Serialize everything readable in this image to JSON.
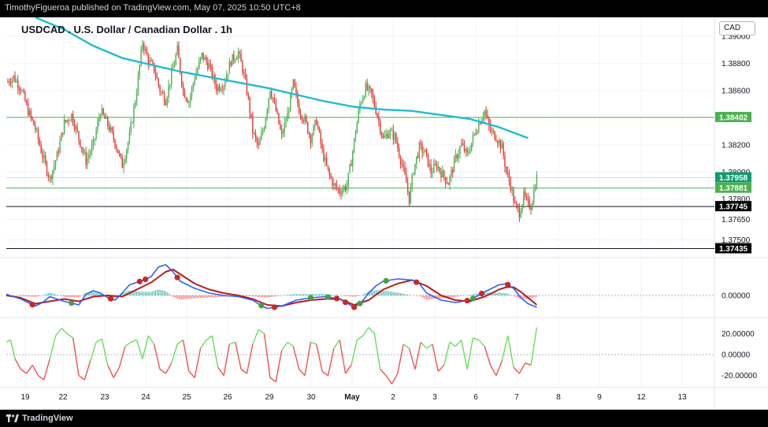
{
  "header": {
    "publisher": "TimothyFigueroa published on TradingView.com, May 07, 2025 10:50 UTC+8"
  },
  "footer": {
    "brand": "TradingView"
  },
  "title": "USDCAD . U.S. Dollar / Canadian Dollar . 1h",
  "currency_button": "CAD",
  "colors": {
    "up": "#4caf50",
    "down": "#e53935",
    "ma": "#1fbcd2",
    "macd_line": "#2962ff",
    "signal_line": "#b71c1c",
    "osc_up": "#66e05a",
    "osc_down": "#ef5350"
  },
  "chart_data": {
    "type": "candlestick",
    "price_axis": {
      "ticks": [
        "1.39000",
        "1.38800",
        "1.38600",
        "1.38200",
        "1.38000",
        "1.37800",
        "1.37650",
        "1.37500"
      ],
      "ylim": [
        1.3738,
        1.3914
      ]
    },
    "x_labels": [
      "19",
      "22",
      "23",
      "24",
      "25",
      "26",
      "29",
      "30",
      "May",
      "2",
      "3",
      "6",
      "7",
      "8",
      "9",
      "12",
      "13"
    ],
    "horizontal_levels": [
      {
        "label": "1.38402",
        "value": 1.38402,
        "style": "green-box"
      },
      {
        "label": "1.37958",
        "value": 1.37958,
        "style": "teal-box"
      },
      {
        "label": "1.37881",
        "value": 1.37881,
        "style": "green-box"
      },
      {
        "label": "1.37745",
        "value": 1.37745,
        "style": "black-box"
      },
      {
        "label": "1.37435",
        "value": 1.37435,
        "style": "black-box"
      }
    ],
    "price_path": [
      [
        0,
        1.3866
      ],
      [
        5,
        1.387
      ],
      [
        10,
        1.3862
      ],
      [
        15,
        1.3845
      ],
      [
        20,
        1.3832
      ],
      [
        25,
        1.3812
      ],
      [
        30,
        1.3795
      ],
      [
        35,
        1.3812
      ],
      [
        40,
        1.3836
      ],
      [
        45,
        1.3842
      ],
      [
        50,
        1.3825
      ],
      [
        55,
        1.3808
      ],
      [
        60,
        1.382
      ],
      [
        65,
        1.3845
      ],
      [
        70,
        1.3835
      ],
      [
        75,
        1.3822
      ],
      [
        80,
        1.3805
      ],
      [
        85,
        1.3826
      ],
      [
        90,
        1.386
      ],
      [
        94,
        1.3896
      ],
      [
        98,
        1.3882
      ],
      [
        102,
        1.3876
      ],
      [
        106,
        1.386
      ],
      [
        110,
        1.3853
      ],
      [
        114,
        1.3872
      ],
      [
        118,
        1.389
      ],
      [
        122,
        1.386
      ],
      [
        126,
        1.3852
      ],
      [
        130,
        1.387
      ],
      [
        135,
        1.3886
      ],
      [
        140,
        1.3878
      ],
      [
        145,
        1.3862
      ],
      [
        150,
        1.3865
      ],
      [
        155,
        1.3882
      ],
      [
        160,
        1.3888
      ],
      [
        163,
        1.3876
      ],
      [
        166,
        1.386
      ],
      [
        170,
        1.383
      ],
      [
        174,
        1.3818
      ],
      [
        178,
        1.3835
      ],
      [
        182,
        1.3862
      ],
      [
        186,
        1.3845
      ],
      [
        190,
        1.3826
      ],
      [
        194,
        1.3842
      ],
      [
        198,
        1.3865
      ],
      [
        202,
        1.3846
      ],
      [
        206,
        1.3838
      ],
      [
        210,
        1.3825
      ],
      [
        214,
        1.3838
      ],
      [
        218,
        1.3815
      ],
      [
        222,
        1.38
      ],
      [
        226,
        1.379
      ],
      [
        230,
        1.3786
      ],
      [
        235,
        1.379
      ],
      [
        238,
        1.3808
      ],
      [
        241,
        1.383
      ],
      [
        244,
        1.385
      ],
      [
        248,
        1.3862
      ],
      [
        252,
        1.3857
      ],
      [
        256,
        1.3842
      ],
      [
        260,
        1.3824
      ],
      [
        264,
        1.383
      ],
      [
        268,
        1.3826
      ],
      [
        272,
        1.381
      ],
      [
        276,
        1.3792
      ],
      [
        278,
        1.378
      ],
      [
        281,
        1.3802
      ],
      [
        285,
        1.3818
      ],
      [
        289,
        1.3814
      ],
      [
        293,
        1.38
      ],
      [
        297,
        1.3805
      ],
      [
        301,
        1.3798
      ],
      [
        305,
        1.3792
      ],
      [
        310,
        1.381
      ],
      [
        314,
        1.382
      ],
      [
        318,
        1.3812
      ],
      [
        322,
        1.3825
      ],
      [
        326,
        1.3836
      ],
      [
        330,
        1.3845
      ],
      [
        334,
        1.383
      ],
      [
        338,
        1.3826
      ],
      [
        342,
        1.3818
      ],
      [
        345,
        1.38
      ],
      [
        348,
        1.379
      ],
      [
        351,
        1.3775
      ],
      [
        354,
        1.377
      ],
      [
        357,
        1.3782
      ],
      [
        360,
        1.3776
      ],
      [
        362,
        1.3775
      ],
      [
        364,
        1.3786
      ],
      [
        366,
        1.3796
      ]
    ],
    "moving_average": [
      [
        20,
        1.3914
      ],
      [
        40,
        1.3905
      ],
      [
        60,
        1.3893
      ],
      [
        80,
        1.3884
      ],
      [
        100,
        1.3879
      ],
      [
        120,
        1.3874
      ],
      [
        140,
        1.387
      ],
      [
        160,
        1.3866
      ],
      [
        180,
        1.3862
      ],
      [
        200,
        1.3857
      ],
      [
        220,
        1.3852
      ],
      [
        240,
        1.3848
      ],
      [
        260,
        1.3846
      ],
      [
        280,
        1.3845
      ],
      [
        300,
        1.3842
      ],
      [
        320,
        1.3839
      ],
      [
        340,
        1.3833
      ],
      [
        350,
        1.3829
      ],
      [
        360,
        1.3825
      ]
    ],
    "oscillator_1": {
      "ticks": [
        "0.00000"
      ],
      "macd": [
        [
          0,
          0.1
        ],
        [
          10,
          -0.3
        ],
        [
          20,
          -0.9
        ],
        [
          25,
          -0.6
        ],
        [
          30,
          -0.1
        ],
        [
          35,
          -0.3
        ],
        [
          40,
          -0.5
        ],
        [
          50,
          -0.8
        ],
        [
          55,
          0.1
        ],
        [
          60,
          0.4
        ],
        [
          65,
          0.2
        ],
        [
          70,
          -0.2
        ],
        [
          75,
          -0.4
        ],
        [
          80,
          0.2
        ],
        [
          85,
          0.9
        ],
        [
          90,
          1.1
        ],
        [
          95,
          1.3
        ],
        [
          100,
          1.6
        ],
        [
          105,
          2.4
        ],
        [
          110,
          2.6
        ],
        [
          115,
          2.0
        ],
        [
          120,
          1.2
        ],
        [
          130,
          0.6
        ],
        [
          140,
          0.2
        ],
        [
          150,
          0.0
        ],
        [
          160,
          -0.1
        ],
        [
          170,
          -0.4
        ],
        [
          175,
          -0.8
        ],
        [
          180,
          -1.1
        ],
        [
          190,
          -0.9
        ],
        [
          200,
          -0.4
        ],
        [
          210,
          -0.2
        ],
        [
          220,
          -0.1
        ],
        [
          230,
          -0.3
        ],
        [
          240,
          -1.0
        ],
        [
          245,
          -0.6
        ],
        [
          250,
          0.2
        ],
        [
          255,
          0.8
        ],
        [
          260,
          1.2
        ],
        [
          270,
          1.4
        ],
        [
          280,
          1.3
        ],
        [
          285,
          1.0
        ],
        [
          290,
          0.2
        ],
        [
          300,
          -0.4
        ],
        [
          310,
          -0.6
        ],
        [
          320,
          -0.4
        ],
        [
          330,
          0.3
        ],
        [
          340,
          0.9
        ],
        [
          345,
          1.0
        ],
        [
          350,
          0.6
        ],
        [
          355,
          -0.2
        ],
        [
          360,
          -0.7
        ],
        [
          366,
          -1.0
        ]
      ],
      "signal": [
        [
          0,
          0.0
        ],
        [
          10,
          -0.2
        ],
        [
          20,
          -0.7
        ],
        [
          30,
          -0.5
        ],
        [
          40,
          -0.3
        ],
        [
          50,
          -0.5
        ],
        [
          60,
          -0.1
        ],
        [
          70,
          0.0
        ],
        [
          80,
          -0.1
        ],
        [
          90,
          0.5
        ],
        [
          100,
          1.1
        ],
        [
          110,
          2.0
        ],
        [
          115,
          2.2
        ],
        [
          120,
          1.8
        ],
        [
          130,
          1.0
        ],
        [
          140,
          0.5
        ],
        [
          150,
          0.2
        ],
        [
          160,
          0.0
        ],
        [
          170,
          -0.3
        ],
        [
          180,
          -0.8
        ],
        [
          190,
          -0.9
        ],
        [
          200,
          -0.6
        ],
        [
          210,
          -0.4
        ],
        [
          220,
          -0.3
        ],
        [
          230,
          -0.3
        ],
        [
          240,
          -0.8
        ],
        [
          250,
          -0.4
        ],
        [
          260,
          0.5
        ],
        [
          270,
          1.0
        ],
        [
          280,
          1.3
        ],
        [
          290,
          0.8
        ],
        [
          300,
          0.0
        ],
        [
          310,
          -0.4
        ],
        [
          320,
          -0.5
        ],
        [
          330,
          -0.1
        ],
        [
          340,
          0.5
        ],
        [
          345,
          0.7
        ],
        [
          350,
          0.7
        ],
        [
          355,
          0.3
        ],
        [
          360,
          -0.2
        ],
        [
          366,
          -0.8
        ]
      ],
      "cross_markers": [
        [
          18,
          "down"
        ],
        [
          45,
          "up"
        ],
        [
          72,
          "down"
        ],
        [
          92,
          "down"
        ],
        [
          96,
          "down"
        ],
        [
          118,
          "down"
        ],
        [
          176,
          "up"
        ],
        [
          185,
          "down"
        ],
        [
          210,
          "up"
        ],
        [
          222,
          "up"
        ],
        [
          228,
          "down"
        ],
        [
          234,
          "down"
        ],
        [
          240,
          "down"
        ],
        [
          244,
          "up"
        ],
        [
          262,
          "up"
        ],
        [
          283,
          "down"
        ],
        [
          318,
          "down"
        ],
        [
          322,
          "up"
        ],
        [
          328,
          "down"
        ],
        [
          346,
          "down"
        ]
      ],
      "ylim": [
        -1.8,
        3.0
      ]
    },
    "oscillator_2": {
      "ticks": [
        "20.00000",
        "0.00000",
        "-20.00000"
      ],
      "values": [
        [
          0,
          12
        ],
        [
          3,
          14
        ],
        [
          6,
          -4
        ],
        [
          10,
          -14
        ],
        [
          14,
          -18
        ],
        [
          18,
          -10
        ],
        [
          22,
          -20
        ],
        [
          26,
          -24
        ],
        [
          30,
          -4
        ],
        [
          34,
          18
        ],
        [
          38,
          25
        ],
        [
          42,
          20
        ],
        [
          46,
          16
        ],
        [
          50,
          -20
        ],
        [
          54,
          -24
        ],
        [
          58,
          -6
        ],
        [
          62,
          12
        ],
        [
          66,
          15
        ],
        [
          70,
          -10
        ],
        [
          74,
          -22
        ],
        [
          78,
          -12
        ],
        [
          82,
          8
        ],
        [
          86,
          12
        ],
        [
          90,
          14
        ],
        [
          94,
          -4
        ],
        [
          98,
          18
        ],
        [
          102,
          10
        ],
        [
          106,
          -14
        ],
        [
          110,
          -18
        ],
        [
          114,
          -8
        ],
        [
          118,
          10
        ],
        [
          122,
          14
        ],
        [
          126,
          -16
        ],
        [
          130,
          -22
        ],
        [
          134,
          6
        ],
        [
          138,
          14
        ],
        [
          142,
          18
        ],
        [
          146,
          -12
        ],
        [
          150,
          -20
        ],
        [
          154,
          10
        ],
        [
          158,
          12
        ],
        [
          162,
          -14
        ],
        [
          166,
          -18
        ],
        [
          170,
          10
        ],
        [
          174,
          24
        ],
        [
          178,
          20
        ],
        [
          182,
          -22
        ],
        [
          186,
          -26
        ],
        [
          190,
          4
        ],
        [
          194,
          12
        ],
        [
          198,
          8
        ],
        [
          202,
          -14
        ],
        [
          206,
          -20
        ],
        [
          210,
          12
        ],
        [
          214,
          10
        ],
        [
          218,
          -16
        ],
        [
          222,
          -20
        ],
        [
          226,
          6
        ],
        [
          230,
          14
        ],
        [
          234,
          -18
        ],
        [
          238,
          -10
        ],
        [
          242,
          14
        ],
        [
          246,
          18
        ],
        [
          250,
          26
        ],
        [
          254,
          20
        ],
        [
          258,
          -14
        ],
        [
          262,
          -20
        ],
        [
          266,
          -28
        ],
        [
          270,
          -18
        ],
        [
          274,
          10
        ],
        [
          278,
          6
        ],
        [
          282,
          -14
        ],
        [
          286,
          12
        ],
        [
          290,
          6
        ],
        [
          294,
          10
        ],
        [
          298,
          -16
        ],
        [
          302,
          -10
        ],
        [
          306,
          12
        ],
        [
          310,
          8
        ],
        [
          314,
          14
        ],
        [
          318,
          -14
        ],
        [
          322,
          16
        ],
        [
          326,
          14
        ],
        [
          330,
          8
        ],
        [
          334,
          -10
        ],
        [
          338,
          -20
        ],
        [
          342,
          -6
        ],
        [
          346,
          18
        ],
        [
          350,
          -12
        ],
        [
          354,
          -18
        ],
        [
          358,
          -8
        ],
        [
          362,
          -10
        ],
        [
          366,
          26
        ]
      ],
      "ylim": [
        -30,
        34
      ]
    }
  }
}
